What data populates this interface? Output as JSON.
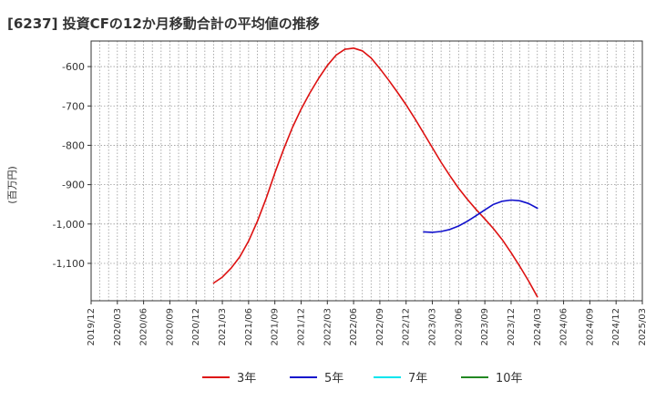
{
  "chart_data": {
    "type": "line",
    "title": "[6237]  投資CFの12か月移動合計の平均値の推移",
    "ylabel": "(百万円)",
    "xlabel": "",
    "ylim": [
      -1195,
      -535
    ],
    "yticks": [
      -600,
      -700,
      -800,
      -900,
      -1000,
      -1100
    ],
    "ytick_labels": [
      "-600",
      "-700",
      "-800",
      "-900",
      "-1,000",
      "-1,100"
    ],
    "x_tick_labels": [
      "2019/12",
      "2020/03",
      "2020/06",
      "2020/09",
      "2020/12",
      "2021/03",
      "2021/06",
      "2021/09",
      "2021/12",
      "2022/03",
      "2022/06",
      "2022/09",
      "2022/12",
      "2023/03",
      "2023/06",
      "2023/09",
      "2023/12",
      "2024/03",
      "2024/06",
      "2024/09",
      "2024/12",
      "2025/03"
    ],
    "grid": true,
    "legend_position": "bottom",
    "series": [
      {
        "name": "3年",
        "color": "#dd1111",
        "x": [
          "2021/02",
          "2021/03",
          "2021/04",
          "2021/05",
          "2021/06",
          "2021/07",
          "2021/08",
          "2021/09",
          "2021/10",
          "2021/11",
          "2021/12",
          "2022/01",
          "2022/02",
          "2022/03",
          "2022/04",
          "2022/05",
          "2022/06",
          "2022/07",
          "2022/08",
          "2022/09",
          "2022/10",
          "2022/11",
          "2022/12",
          "2023/01",
          "2023/02",
          "2023/03",
          "2023/04",
          "2023/05",
          "2023/06",
          "2023/07",
          "2023/08",
          "2023/09",
          "2023/10",
          "2023/11",
          "2023/12",
          "2024/01",
          "2024/02",
          "2024/03"
        ],
        "values": [
          -1150,
          -1135,
          -1112,
          -1083,
          -1043,
          -993,
          -935,
          -870,
          -810,
          -755,
          -708,
          -667,
          -630,
          -597,
          -571,
          -556,
          -553,
          -560,
          -578,
          -605,
          -634,
          -665,
          -697,
          -732,
          -769,
          -806,
          -843,
          -877,
          -909,
          -937,
          -963,
          -987,
          -1012,
          -1040,
          -1073,
          -1108,
          -1145,
          -1185
        ]
      },
      {
        "name": "5年",
        "color": "#1111cc",
        "x": [
          "2023/02",
          "2023/03",
          "2023/04",
          "2023/05",
          "2023/06",
          "2023/07",
          "2023/08",
          "2023/09",
          "2023/10",
          "2023/11",
          "2023/12",
          "2024/01",
          "2024/02",
          "2024/03"
        ],
        "values": [
          -1020,
          -1021,
          -1019,
          -1014,
          -1005,
          -993,
          -979,
          -964,
          -950,
          -942,
          -939,
          -941,
          -948,
          -960
        ]
      },
      {
        "name": "7年",
        "color": "#00e5ee",
        "x": [],
        "values": []
      },
      {
        "name": "10年",
        "color": "#228822",
        "x": [],
        "values": []
      }
    ]
  }
}
